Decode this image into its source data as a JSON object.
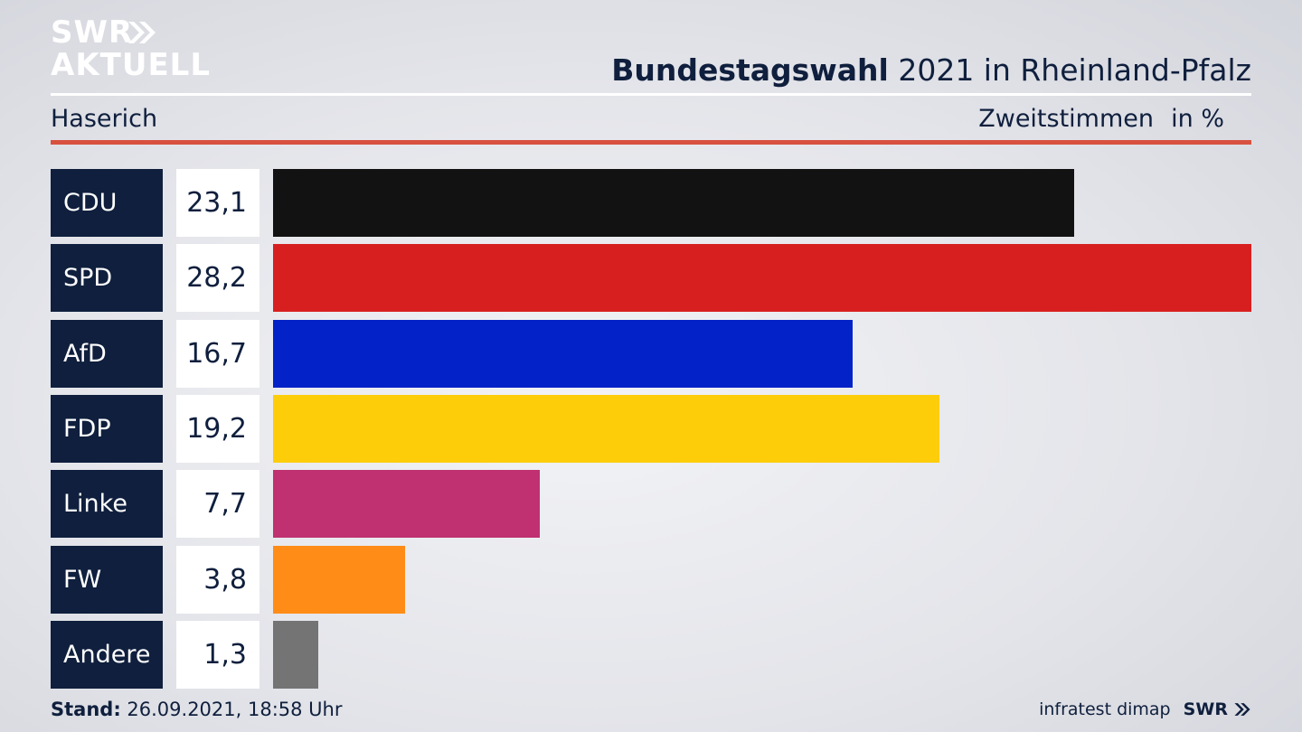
{
  "brand": {
    "logo_line1": "SWR",
    "logo_line2": "AKTUELL",
    "logo_chevron_icon": "double-chevron-right-icon",
    "footer_logo": "SWR",
    "footer_chevron_icon": "double-chevron-right-icon"
  },
  "header": {
    "title_bold": "Bundestagswahl",
    "title_rest": " 2021 in Rheinland-Pfalz",
    "region": "Haserich",
    "metric": "Zweitstimmen",
    "unit": "in %"
  },
  "footer": {
    "stand_label": "Stand:",
    "stand_value": " 26.09.2021, 18:58 Uhr",
    "source": "infratest dimap"
  },
  "colors": {
    "accent_red": "#d8503f",
    "navy": "#0f1f3d"
  },
  "chart_data": {
    "type": "bar",
    "orientation": "horizontal",
    "title": "Bundestagswahl 2021 in Rheinland-Pfalz",
    "categories": [
      "CDU",
      "SPD",
      "AfD",
      "FDP",
      "Linke",
      "FW",
      "Andere"
    ],
    "values": [
      23.1,
      28.2,
      16.7,
      19.2,
      7.7,
      3.8,
      1.3
    ],
    "value_labels": [
      "23,1",
      "28,2",
      "16,7",
      "19,2",
      "7,7",
      "3,8",
      "1,3"
    ],
    "colors": [
      "#121212",
      "#d81f1f",
      "#0322c7",
      "#fdcd0a",
      "#bf3170",
      "#ff8c17",
      "#747474"
    ],
    "xlim": [
      0,
      28.2
    ],
    "grid": false,
    "legend": "none"
  }
}
